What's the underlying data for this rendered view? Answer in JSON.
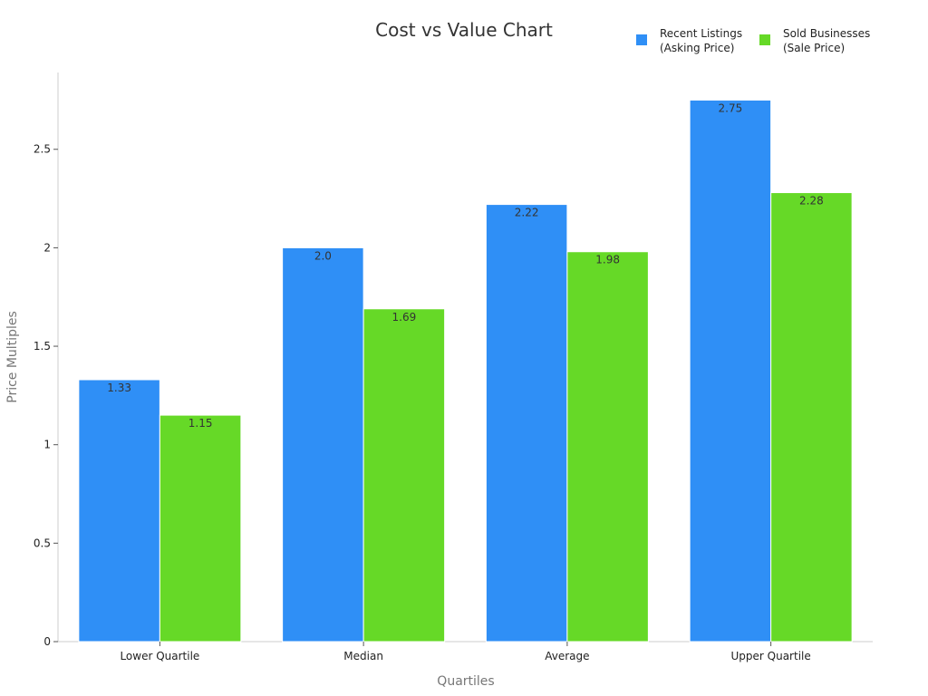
{
  "chart_data": {
    "type": "bar",
    "title": "Cost vs Value Chart",
    "xlabel": "Quartiles",
    "ylabel": "Price Multiples",
    "categories": [
      "Lower Quartile",
      "Median",
      "Average",
      "Upper Quartile"
    ],
    "series": [
      {
        "name_lines": [
          "Recent Listings",
          "(Asking Price)"
        ],
        "color": "#2f8ff6",
        "values": [
          1.33,
          2.0,
          2.22,
          2.75
        ],
        "value_labels": [
          "1.33",
          "2.0",
          "2.22",
          "2.75"
        ]
      },
      {
        "name_lines": [
          "Sold Businesses",
          "(Sale Price)"
        ],
        "color": "#66d927",
        "values": [
          1.15,
          1.69,
          1.98,
          2.28
        ],
        "value_labels": [
          "1.15",
          "1.69",
          "1.98",
          "2.28"
        ]
      }
    ],
    "ylim": [
      0,
      2.89
    ],
    "yticks": [
      0,
      0.5,
      1,
      1.5,
      2,
      2.5
    ],
    "ytick_labels": [
      "0",
      "0.5",
      "1",
      "1.5",
      "2",
      "2.5"
    ],
    "grid": false,
    "legend_position": "top-right"
  }
}
